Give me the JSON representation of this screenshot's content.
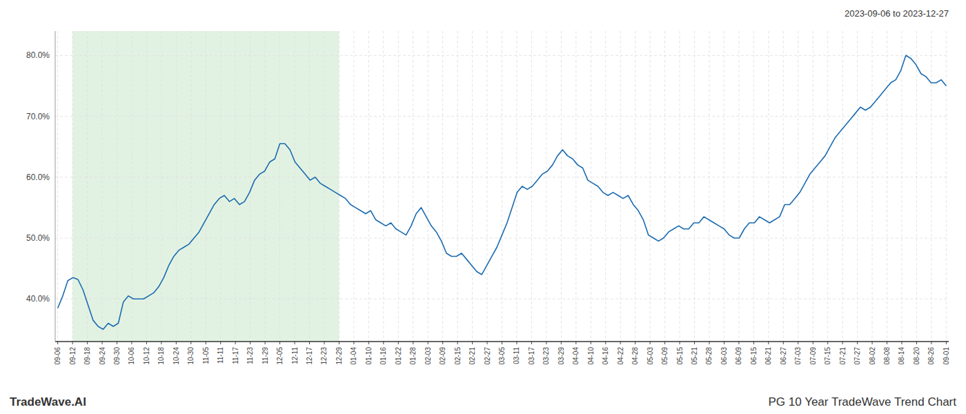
{
  "chart_data": {
    "type": "line",
    "title": "PG 10 Year TradeWave Trend Chart",
    "subtitle": "2023-09-06 to 2023-12-27",
    "annotations": [
      "TradeWave.AI"
    ],
    "color": "#1a6ab0",
    "grid": true,
    "shade_start": 2.933333,
    "shade_end": 55.733333,
    "shade_color": "#d6ecd6",
    "xlim": [
      -0.5,
      176.5
    ],
    "xticks": [
      {
        "value": 0,
        "label": "09-06"
      },
      {
        "value": 2.933333,
        "label": "09-12"
      },
      {
        "value": 5.866667,
        "label": "09-18"
      },
      {
        "value": 8.8,
        "label": "09-24"
      },
      {
        "value": 11.733333,
        "label": "09-30"
      },
      {
        "value": 14.666667,
        "label": "10-06"
      },
      {
        "value": 17.6,
        "label": "10-12"
      },
      {
        "value": 20.533333,
        "label": "10-18"
      },
      {
        "value": 23.466667,
        "label": "10-24"
      },
      {
        "value": 26.4,
        "label": "10-30"
      },
      {
        "value": 29.333333,
        "label": "11-05"
      },
      {
        "value": 32.266667,
        "label": "11-11"
      },
      {
        "value": 35.2,
        "label": "11-17"
      },
      {
        "value": 38.133333,
        "label": "11-23"
      },
      {
        "value": 41.066667,
        "label": "11-29"
      },
      {
        "value": 44,
        "label": "12-05"
      },
      {
        "value": 46.933333,
        "label": "12-11"
      },
      {
        "value": 49.866667,
        "label": "12-17"
      },
      {
        "value": 52.8,
        "label": "12-23"
      },
      {
        "value": 55.733333,
        "label": "12-29"
      },
      {
        "value": 58.666667,
        "label": "01-04"
      },
      {
        "value": 61.6,
        "label": "01-10"
      },
      {
        "value": 64.533333,
        "label": "01-16"
      },
      {
        "value": 67.466667,
        "label": "01-22"
      },
      {
        "value": 70.4,
        "label": "01-28"
      },
      {
        "value": 73.333333,
        "label": "02-03"
      },
      {
        "value": 76.266667,
        "label": "02-09"
      },
      {
        "value": 79.2,
        "label": "02-15"
      },
      {
        "value": 82.133333,
        "label": "02-21"
      },
      {
        "value": 85.066667,
        "label": "02-27"
      },
      {
        "value": 88,
        "label": "03-05"
      },
      {
        "value": 90.933333,
        "label": "03-11"
      },
      {
        "value": 93.866667,
        "label": "03-17"
      },
      {
        "value": 96.8,
        "label": "03-23"
      },
      {
        "value": 99.733333,
        "label": "03-29"
      },
      {
        "value": 102.666667,
        "label": "04-04"
      },
      {
        "value": 105.6,
        "label": "04-10"
      },
      {
        "value": 108.533333,
        "label": "04-16"
      },
      {
        "value": 111.466667,
        "label": "04-22"
      },
      {
        "value": 114.4,
        "label": "04-28"
      },
      {
        "value": 117.333333,
        "label": "05-03"
      },
      {
        "value": 120.266667,
        "label": "05-09"
      },
      {
        "value": 123.2,
        "label": "05-15"
      },
      {
        "value": 126.133333,
        "label": "05-21"
      },
      {
        "value": 129.066667,
        "label": "05-28"
      },
      {
        "value": 132,
        "label": "06-03"
      },
      {
        "value": 134.933333,
        "label": "06-09"
      },
      {
        "value": 137.866667,
        "label": "06-15"
      },
      {
        "value": 140.8,
        "label": "06-21"
      },
      {
        "value": 143.733333,
        "label": "06-27"
      },
      {
        "value": 146.666667,
        "label": "07-03"
      },
      {
        "value": 149.6,
        "label": "07-09"
      },
      {
        "value": 152.533333,
        "label": "07-15"
      },
      {
        "value": 155.466667,
        "label": "07-21"
      },
      {
        "value": 158.4,
        "label": "07-27"
      },
      {
        "value": 161.333333,
        "label": "08-02"
      },
      {
        "value": 164.266667,
        "label": "08-08"
      },
      {
        "value": 167.2,
        "label": "08-14"
      },
      {
        "value": 170.133333,
        "label": "08-20"
      },
      {
        "value": 173.066667,
        "label": "08-26"
      },
      {
        "value": 176,
        "label": "09-01"
      }
    ],
    "ylim": [
      33,
      84
    ],
    "yticks": [
      {
        "value": 40,
        "label": "40.0%"
      },
      {
        "value": 50,
        "label": "50.0%"
      },
      {
        "value": 60,
        "label": "60.0%"
      },
      {
        "value": 70,
        "label": "70.0%"
      },
      {
        "value": 80,
        "label": "80.0%"
      }
    ],
    "values": [
      38.5,
      40.5,
      43.0,
      43.5,
      43.2,
      41.5,
      39.0,
      36.5,
      35.5,
      35.0,
      36.0,
      35.5,
      36.0,
      39.5,
      40.5,
      40.0,
      40.0,
      40.0,
      40.5,
      41.0,
      42.0,
      43.5,
      45.5,
      47.0,
      48.0,
      48.5,
      49.0,
      50.0,
      51.0,
      52.5,
      54.0,
      55.5,
      56.5,
      57.0,
      56.0,
      56.5,
      55.5,
      56.0,
      57.5,
      59.5,
      60.5,
      61.0,
      62.5,
      63.0,
      65.5,
      65.5,
      64.5,
      62.5,
      61.5,
      60.5,
      59.5,
      60.0,
      59.0,
      58.5,
      58.0,
      57.5,
      57.0,
      56.5,
      55.5,
      55.0,
      54.5,
      54.0,
      54.5,
      53.0,
      52.5,
      52.0,
      52.5,
      51.5,
      51.0,
      50.5,
      52.0,
      54.0,
      55.0,
      53.5,
      52.0,
      51.0,
      49.5,
      47.5,
      47.0,
      47.0,
      47.5,
      46.5,
      45.5,
      44.5,
      44.0,
      45.5,
      47.0,
      48.5,
      50.5,
      52.5,
      55.0,
      57.5,
      58.5,
      58.0,
      58.5,
      59.5,
      60.5,
      61.0,
      62.0,
      63.5,
      64.5,
      63.5,
      63.0,
      62.0,
      61.5,
      59.5,
      59.0,
      58.5,
      57.5,
      57.0,
      57.5,
      57.0,
      56.5,
      57.0,
      55.5,
      54.5,
      53.0,
      50.5,
      50.0,
      49.5,
      50.0,
      51.0,
      51.5,
      52.0,
      51.5,
      51.5,
      52.5,
      52.5,
      53.5,
      53.0,
      52.5,
      52.0,
      51.5,
      50.5,
      50.0,
      50.0,
      51.5,
      52.5,
      52.5,
      53.5,
      53.0,
      52.5,
      53.0,
      53.5,
      55.5,
      55.5,
      56.5,
      57.5,
      59.0,
      60.5,
      61.5,
      62.5,
      63.5,
      65.0,
      66.5,
      67.5,
      68.5,
      69.5,
      70.5,
      71.5,
      71.0,
      71.5,
      72.5,
      73.5,
      74.5,
      75.5,
      76.0,
      77.5,
      80.0,
      79.5,
      78.5,
      77.0,
      76.5,
      75.5,
      75.5,
      76.0,
      75.0
    ]
  }
}
